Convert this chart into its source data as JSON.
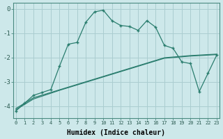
{
  "xlabel": "Humidex (Indice chaleur)",
  "background_color": "#cde8ea",
  "grid_color": "#aacdd0",
  "line_color": "#2a7d6e",
  "x_ticks": [
    0,
    1,
    2,
    3,
    4,
    5,
    6,
    7,
    8,
    9,
    10,
    11,
    12,
    13,
    14,
    15,
    16,
    17,
    18,
    19,
    20,
    21,
    22,
    23
  ],
  "y_ticks": [
    0,
    -1,
    -2,
    -3,
    -4
  ],
  "ylim": [
    -4.5,
    0.25
  ],
  "xlim": [
    -0.3,
    23.3
  ],
  "series1_y": [
    -4.1,
    -3.88,
    -3.66,
    -3.55,
    -3.44,
    -3.33,
    -3.22,
    -3.11,
    -3.0,
    -2.89,
    -2.78,
    -2.67,
    -2.56,
    -2.45,
    -2.34,
    -2.23,
    -2.12,
    -2.01,
    -1.98,
    -1.95,
    -1.92,
    -1.9,
    -1.88,
    -1.86
  ],
  "series2_y": [
    -4.15,
    -3.93,
    -3.71,
    -3.59,
    -3.47,
    -3.35,
    -3.24,
    -3.13,
    -3.02,
    -2.91,
    -2.8,
    -2.69,
    -2.58,
    -2.47,
    -2.36,
    -2.25,
    -2.14,
    -2.03,
    -2.0,
    -1.97,
    -1.94,
    -1.92,
    -1.9,
    -1.88
  ],
  "series3_y": [
    -4.2,
    -3.88,
    -3.56,
    -3.44,
    -3.32,
    -2.35,
    -1.45,
    -1.38,
    -0.55,
    -0.12,
    -0.05,
    -0.48,
    -0.68,
    -0.72,
    -0.88,
    -0.48,
    -0.75,
    -1.5,
    -1.62,
    -2.18,
    -2.25,
    -3.4,
    -2.65,
    -1.9
  ]
}
